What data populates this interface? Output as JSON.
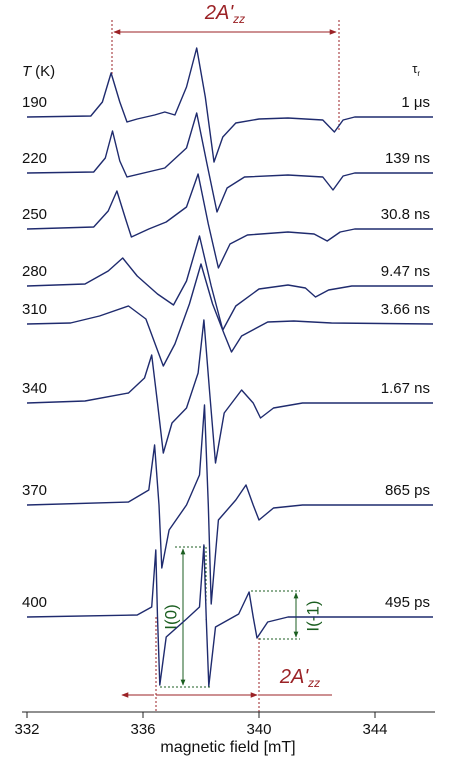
{
  "chart_data": {
    "type": "line",
    "xlabel": "magnetic field [mT]",
    "xlim": [
      332,
      346
    ],
    "xticks": [
      332,
      336,
      340,
      344
    ],
    "temp_header": {
      "symbol": "T",
      "unit": "(K)"
    },
    "tau_header": {
      "symbol": "τ",
      "sub": "r"
    },
    "color": "#1f2b6e",
    "annotations": [
      {
        "text": "2A'",
        "sub": "zz"
      },
      {
        "text": "2A'",
        "sub": "zz"
      },
      {
        "text": "I(0)"
      },
      {
        "text": "I(-1)"
      }
    ],
    "series": [
      {
        "name": "190",
        "tau": "1 μs",
        "x": [
          332,
          334.2,
          334.6,
          334.9,
          335.2,
          335.45,
          335.8,
          336.4,
          336.75,
          337.1,
          337.5,
          337.85,
          338.15,
          338.45,
          338.75,
          339.2,
          340,
          341,
          342.2,
          342.6,
          342.9,
          343.3,
          346
        ],
        "values": [
          0,
          1,
          15,
          44,
          15,
          -5,
          -2,
          2,
          5,
          2,
          30,
          69,
          20,
          -45,
          -20,
          -6,
          -2,
          -1,
          -3,
          -15,
          -3,
          0,
          0
        ]
      },
      {
        "name": "220",
        "tau": "139 ns",
        "x": [
          332,
          334.3,
          334.7,
          334.95,
          335.2,
          335.45,
          336.75,
          337.5,
          337.85,
          338.2,
          338.55,
          338.9,
          339.5,
          341,
          342.2,
          342.55,
          342.9,
          343.3,
          346
        ],
        "values": [
          0,
          1,
          15,
          42,
          12,
          -4,
          5,
          25,
          60,
          10,
          -39,
          -15,
          -4,
          -2,
          -4,
          -17,
          -3,
          0,
          0
        ]
      },
      {
        "name": "250",
        "tau": "30.8 ns",
        "x": [
          332,
          334.3,
          334.8,
          335.1,
          335.4,
          335.6,
          336.2,
          336.8,
          337.5,
          337.9,
          338.25,
          338.6,
          339,
          339.6,
          341,
          341.9,
          342.35,
          342.8,
          343.3,
          346
        ],
        "values": [
          0,
          2,
          18,
          38,
          10,
          -8,
          0,
          7,
          22,
          55,
          5,
          -39,
          -15,
          -6,
          -3,
          -5,
          -12,
          -3,
          0,
          0
        ]
      },
      {
        "name": "280",
        "tau": "9.47 ns",
        "x": [
          332,
          334,
          334.8,
          335.3,
          335.8,
          336.5,
          337.05,
          337.5,
          337.95,
          338.35,
          338.75,
          339.2,
          340,
          341,
          341.6,
          341.95,
          342.4,
          343.2,
          346
        ],
        "values": [
          0,
          2,
          15,
          28,
          10,
          -8,
          -19,
          5,
          50,
          0,
          -44,
          -20,
          -3,
          1,
          -2,
          -11,
          -4,
          0,
          0
        ]
      },
      {
        "name": "310",
        "tau": "3.66 ns",
        "x": [
          332,
          333.5,
          334.5,
          335.5,
          336.1,
          336.7,
          337.1,
          337.6,
          338,
          338.4,
          338.8,
          339.05,
          339.4,
          340.3,
          341.2,
          342.5,
          346
        ],
        "values": [
          0,
          1,
          8,
          18,
          5,
          -42,
          -20,
          20,
          60,
          20,
          -10,
          -28,
          -12,
          2,
          3,
          1,
          0
        ]
      },
      {
        "name": "340",
        "tau": "1.67 ns",
        "x": [
          332,
          334,
          335.5,
          336.05,
          336.3,
          336.5,
          336.7,
          337,
          337.5,
          337.9,
          338.1,
          338.3,
          338.5,
          338.8,
          339.4,
          339.8,
          340.05,
          340.5,
          341.5,
          346
        ],
        "values": [
          0,
          2,
          10,
          25,
          48,
          0,
          -50,
          -20,
          -5,
          30,
          83,
          10,
          -60,
          -10,
          13,
          0,
          -15,
          -5,
          0,
          0
        ]
      },
      {
        "name": "370",
        "tau": "865 ps",
        "x": [
          332,
          335.5,
          336.2,
          336.4,
          336.55,
          336.65,
          336.9,
          337.5,
          337.95,
          338.12,
          338.25,
          338.35,
          338.6,
          339.2,
          339.55,
          339.8,
          340,
          340.5,
          341.5,
          346
        ],
        "values": [
          0,
          3,
          15,
          60,
          0,
          -63,
          -25,
          0,
          30,
          100,
          0,
          -99,
          -15,
          5,
          20,
          0,
          -15,
          -3,
          0,
          0
        ]
      },
      {
        "name": "400",
        "tau": "495 ps",
        "x": [
          332,
          335.8,
          336.3,
          336.44,
          336.5,
          336.58,
          336.8,
          337.5,
          337.95,
          338.1,
          338.18,
          338.27,
          338.5,
          339.3,
          339.66,
          339.8,
          339.93,
          340.3,
          341,
          346
        ],
        "values": [
          0,
          2,
          10,
          67,
          0,
          -68,
          -20,
          -2,
          10,
          72,
          0,
          -69,
          -10,
          3,
          25,
          0,
          -21,
          -5,
          0,
          0
        ]
      }
    ]
  }
}
